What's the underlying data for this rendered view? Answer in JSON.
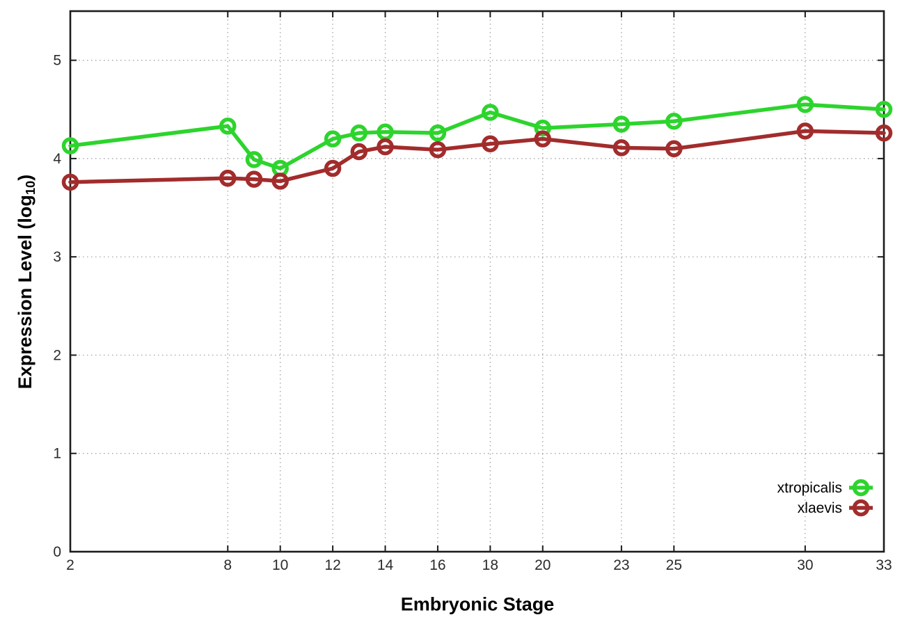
{
  "page": {
    "background": "#ffffff"
  },
  "chart_data": {
    "type": "line",
    "title": "",
    "xlabel": "Embryonic Stage",
    "ylabel": "Expression Level (log10)",
    "ylabel_parts": {
      "prefix": "Expression Level (log",
      "sub": "10",
      "suffix": ")"
    },
    "xlim": [
      2,
      33
    ],
    "ylim": [
      0,
      5.5
    ],
    "x_ticks": [
      2,
      8,
      10,
      12,
      14,
      16,
      18,
      20,
      23,
      25,
      30,
      33
    ],
    "y_ticks": [
      0,
      1,
      2,
      3,
      4,
      5
    ],
    "grid": true,
    "legend_position": "inside-bottom-right",
    "x": [
      2,
      8,
      9,
      10,
      12,
      13,
      14,
      16,
      18,
      20,
      23,
      25,
      30,
      33
    ],
    "series": [
      {
        "name": "xtropicalis",
        "color": "#2dd42d",
        "marker": "open-circle",
        "values": [
          4.13,
          4.33,
          3.99,
          3.9,
          4.2,
          4.26,
          4.27,
          4.26,
          4.47,
          4.31,
          4.35,
          4.38,
          4.55,
          4.5
        ]
      },
      {
        "name": "xlaevis",
        "color": "#a22c2c",
        "marker": "open-circle",
        "values": [
          3.76,
          3.8,
          3.79,
          3.77,
          3.9,
          4.07,
          4.12,
          4.09,
          4.15,
          4.2,
          4.11,
          4.1,
          4.28,
          4.26
        ]
      }
    ],
    "colors": {
      "grid": "#9a9a9a",
      "border": "#1c1c1c",
      "tick_text": "#2b2b2b",
      "title_text": "#000000"
    }
  }
}
